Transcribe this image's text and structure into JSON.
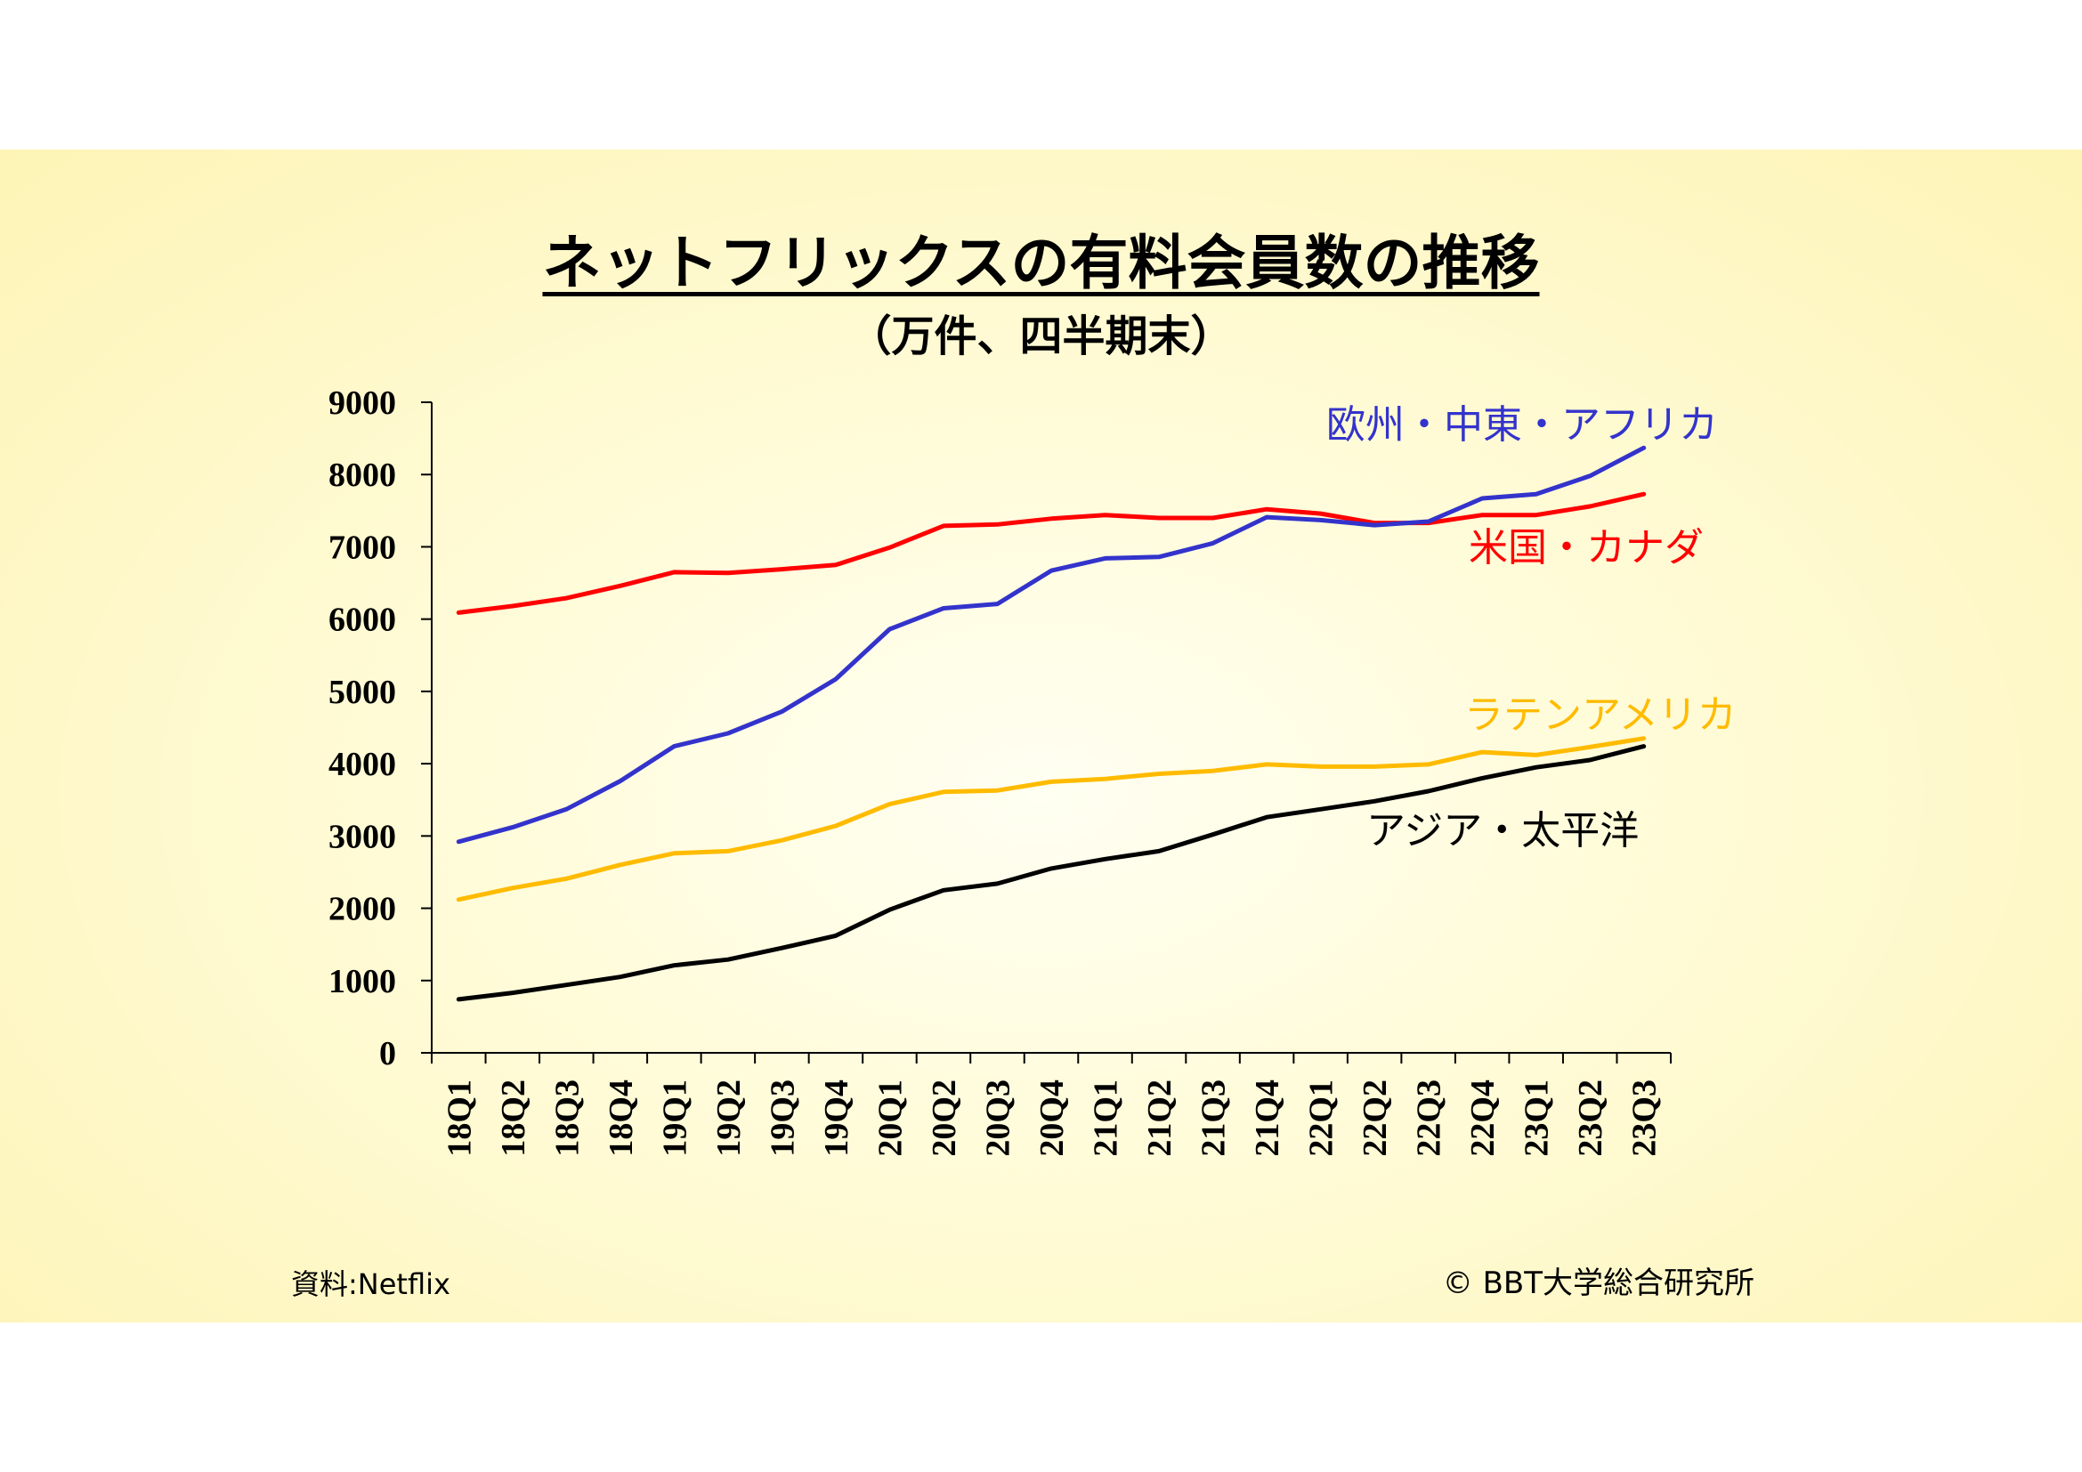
{
  "title": "ネットフリックスの有料会員数の推移",
  "subtitle": "（万件、四半期末）",
  "source": "資料:Netflix",
  "copyright": "© BBT大学総合研究所",
  "chart_data": {
    "type": "line",
    "ylim": [
      0,
      9000
    ],
    "yticks": [
      0,
      1000,
      2000,
      3000,
      4000,
      5000,
      6000,
      7000,
      8000,
      9000
    ],
    "categories": [
      "18Q1",
      "18Q2",
      "18Q3",
      "18Q4",
      "19Q1",
      "19Q2",
      "19Q3",
      "19Q4",
      "20Q1",
      "20Q2",
      "20Q3",
      "20Q4",
      "21Q1",
      "21Q2",
      "21Q3",
      "21Q4",
      "22Q1",
      "22Q2",
      "22Q3",
      "22Q4",
      "23Q1",
      "23Q2",
      "23Q3"
    ],
    "grid": false,
    "series": [
      {
        "name": "米国・カナダ",
        "color": "#ff0000",
        "values": [
          6090,
          6180,
          6290,
          6460,
          6650,
          6640,
          6690,
          6750,
          6990,
          7290,
          7310,
          7390,
          7440,
          7400,
          7400,
          7520,
          7460,
          7330,
          7330,
          7440,
          7440,
          7560,
          7730
        ]
      },
      {
        "name": "欧州・中東・アフリカ",
        "color": "#3333cc",
        "values": [
          2920,
          3120,
          3370,
          3760,
          4240,
          4420,
          4720,
          5170,
          5860,
          6150,
          6210,
          6670,
          6840,
          6860,
          7050,
          7410,
          7370,
          7300,
          7350,
          7670,
          7730,
          7980,
          8370
        ]
      },
      {
        "name": "ラテンアメリカ",
        "color": "#ffbb00",
        "values": [
          2120,
          2280,
          2410,
          2600,
          2760,
          2790,
          2940,
          3140,
          3440,
          3610,
          3630,
          3750,
          3790,
          3860,
          3900,
          3990,
          3960,
          3960,
          3990,
          4160,
          4120,
          4230,
          4350
        ]
      },
      {
        "name": "アジア・太平洋",
        "color": "#000000",
        "values": [
          740,
          830,
          940,
          1050,
          1210,
          1290,
          1450,
          1620,
          1980,
          2250,
          2340,
          2550,
          2680,
          2790,
          3020,
          3260,
          3370,
          3480,
          3620,
          3800,
          3950,
          4050,
          4240
        ]
      }
    ]
  }
}
